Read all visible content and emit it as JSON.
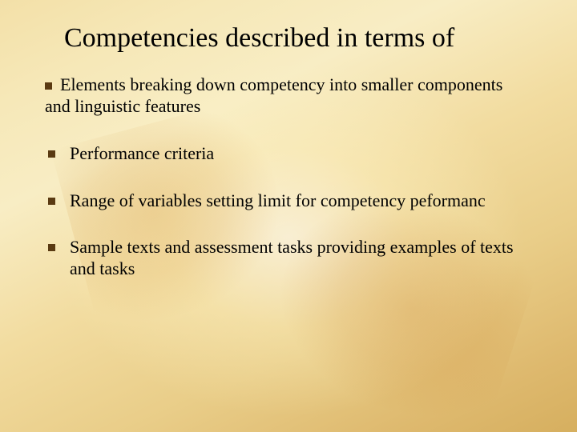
{
  "slide": {
    "title": "Competencies described in terms of",
    "title_fontsize": 34,
    "body_fontsize": 22,
    "background_gradient": [
      "#f3e0a8",
      "#f6e8b8",
      "#f8edc4",
      "#f2dca0",
      "#e9cd88",
      "#deb96e",
      "#d6af5f"
    ],
    "bullet_color": "#5a3a12",
    "text_color": "#000000",
    "bullets": [
      {
        "text": "Elements breaking down competency into smaller components and linguistic features",
        "indent": 0
      },
      {
        "text": "Performance criteria",
        "indent": 1
      },
      {
        "text": "Range of variables setting limit for competency peformanc",
        "indent": 1
      },
      {
        "text": "Sample texts and assessment tasks providing examples of texts and tasks",
        "indent": 1
      }
    ]
  }
}
